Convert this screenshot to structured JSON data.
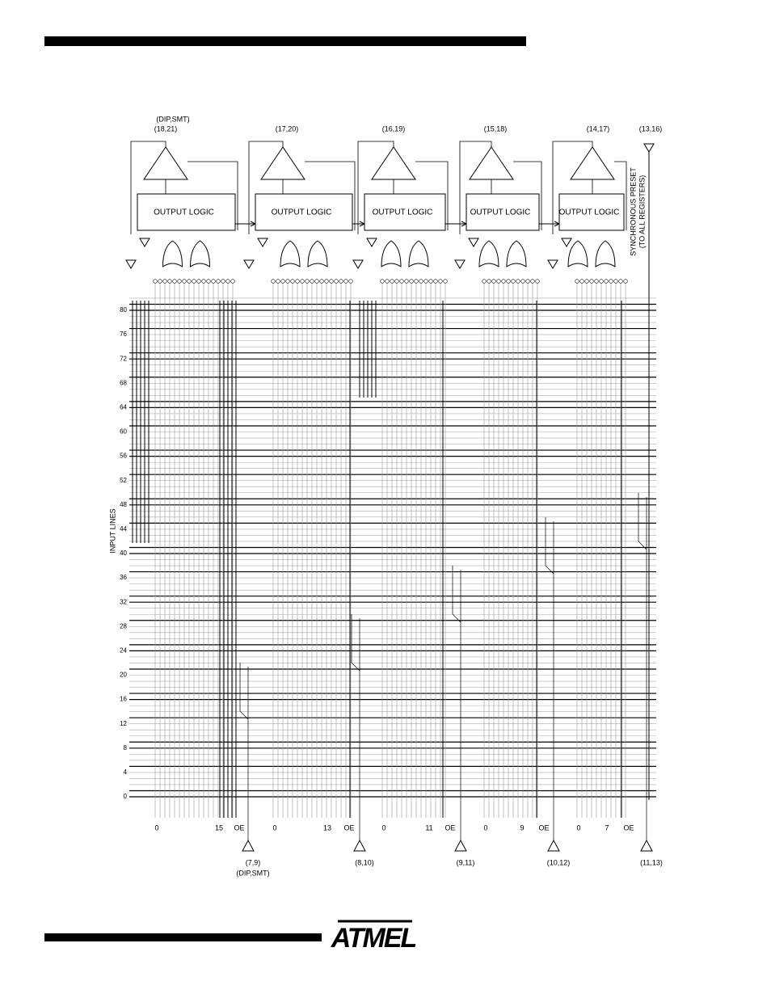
{
  "diagram": {
    "top_pins": [
      "(18,21)",
      "(17,20)",
      "(16,19)",
      "(15,18)",
      "(14,17)",
      "(13,16)"
    ],
    "top_pin_note": "(DIP,SMT)",
    "macrocells": [
      {
        "label": "OUTPUT LOGIC",
        "terms": [
          "0",
          "15",
          "OE"
        ]
      },
      {
        "label": "OUTPUT LOGIC",
        "terms": [
          "0",
          "13",
          "OE"
        ]
      },
      {
        "label": "OUTPUT LOGIC",
        "terms": [
          "0",
          "11",
          "OE"
        ]
      },
      {
        "label": "OUTPUT LOGIC",
        "terms": [
          "0",
          "9",
          "OE"
        ]
      },
      {
        "label": "OUTPUT LOGIC",
        "terms": [
          "0",
          "7",
          "OE"
        ]
      }
    ],
    "bottom_pins": [
      "(7,9)",
      "(8,10)",
      "(9,11)",
      "(10,12)",
      "(11,13)"
    ],
    "bottom_pin_note": "(DIP,SMT)",
    "input_lines_label": "INPUT LINES",
    "input_line_ticks": [
      0,
      4,
      8,
      12,
      16,
      20,
      24,
      28,
      32,
      36,
      40,
      44,
      48,
      52,
      56,
      60,
      64,
      68,
      72,
      76,
      80
    ],
    "preset_label": [
      "SYNCHRONOUS PRESET",
      "(TO ALL REGISTERS)"
    ],
    "logo": "ATMEL"
  }
}
